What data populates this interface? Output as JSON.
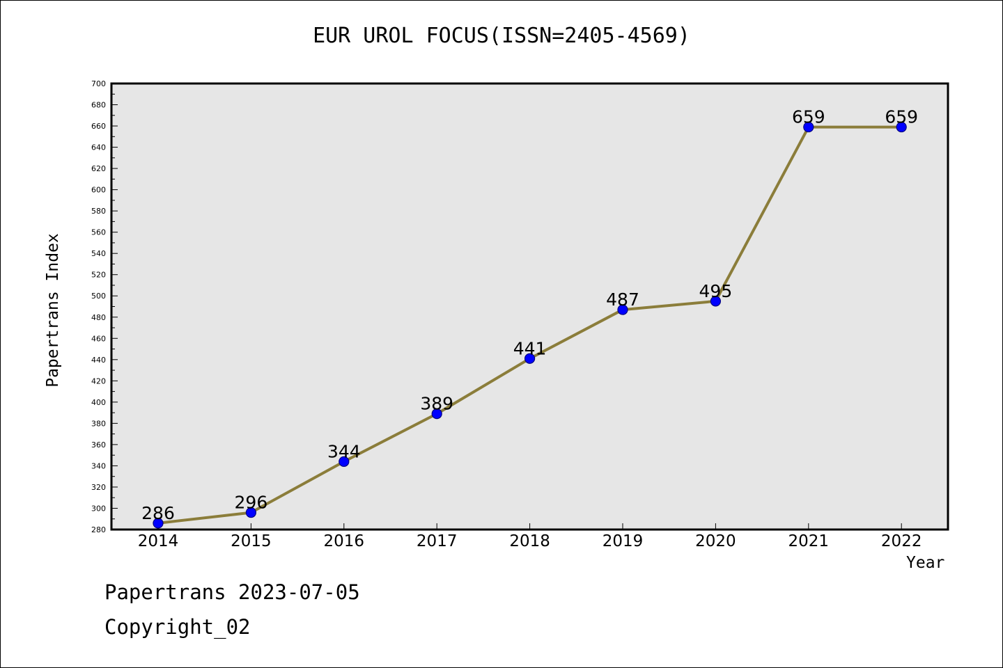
{
  "chart_data": {
    "type": "line",
    "title": "EUR UROL FOCUS(ISSN=2405-4569)",
    "xlabel": "Year",
    "ylabel": "Papertrans Index",
    "categories": [
      "2014",
      "2015",
      "2016",
      "2017",
      "2018",
      "2019",
      "2020",
      "2021",
      "2022"
    ],
    "series": [
      {
        "values": [
          286,
          296,
          344,
          389,
          441,
          487,
          495,
          659,
          659
        ]
      }
    ],
    "data_labels": [
      "286",
      "296",
      "344",
      "389",
      "441",
      "487",
      "495",
      "659",
      "659"
    ],
    "ylim": [
      280,
      700
    ],
    "yticks": [
      "280",
      "300",
      "320",
      "340",
      "360",
      "380",
      "400",
      "420",
      "440",
      "460",
      "480",
      "500",
      "520",
      "540",
      "560",
      "580",
      "600",
      "620",
      "640",
      "660",
      "680",
      "700"
    ],
    "grid": false,
    "legend": "none",
    "colors": {
      "line": "#8b7d3a",
      "marker": "#0000ff",
      "marker_edge": "#000080",
      "plot_background": "#e6e6e6",
      "frame": "#000000"
    }
  },
  "footer": {
    "date_text": "Papertrans 2023-07-05",
    "copyright_text": "Copyright_02"
  }
}
